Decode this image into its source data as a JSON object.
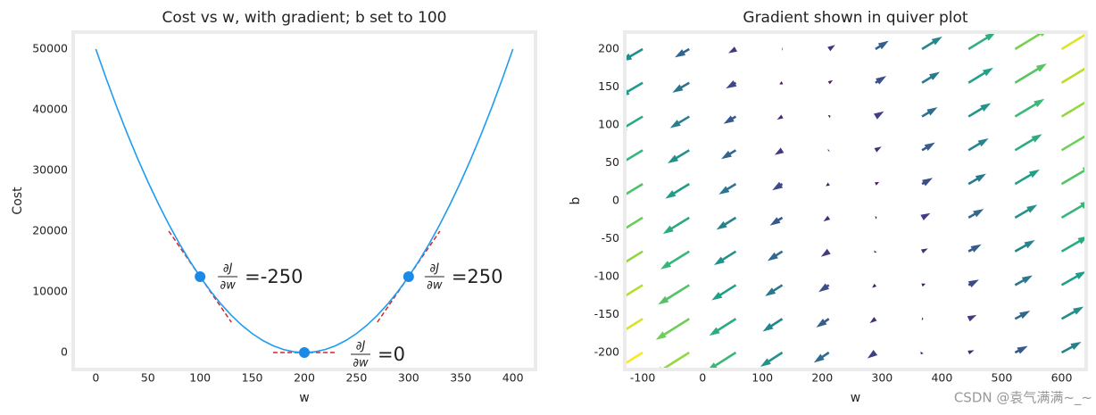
{
  "chart_data": [
    {
      "type": "line",
      "title": "Cost vs w, with gradient; b set to 100",
      "xlabel": "w",
      "ylabel": "Cost",
      "x": [
        0,
        10,
        20,
        30,
        40,
        50,
        60,
        70,
        80,
        90,
        100,
        110,
        120,
        130,
        140,
        150,
        160,
        170,
        180,
        190,
        200,
        210,
        220,
        230,
        240,
        250,
        260,
        270,
        280,
        290,
        300,
        310,
        320,
        330,
        340,
        350,
        360,
        370,
        380,
        390,
        400
      ],
      "values": [
        50000,
        45125,
        40500,
        36125,
        32000,
        28125,
        24500,
        21125,
        18000,
        15125,
        12500,
        10125,
        8000,
        6125,
        4500,
        3125,
        2000,
        1125,
        500,
        125,
        0,
        125,
        500,
        1125,
        2000,
        3125,
        4500,
        6125,
        8000,
        10125,
        12500,
        15125,
        18000,
        21125,
        24500,
        28125,
        32000,
        36125,
        40500,
        45125,
        50000
      ],
      "color": "#1f9bf0",
      "points": {
        "x": [
          100,
          200,
          300
        ],
        "y": [
          12500,
          0,
          12500
        ],
        "color": "#1a8ae6"
      },
      "tangents": [
        {
          "x": [
            70,
            130
          ],
          "y": [
            20000,
            5000
          ]
        },
        {
          "x": [
            170,
            230
          ],
          "y": [
            0,
            0
          ]
        },
        {
          "x": [
            270,
            330
          ],
          "y": [
            5000,
            20000
          ]
        }
      ],
      "tangent_color": "#d62728",
      "annotations": [
        {
          "numerator": "∂J",
          "denominator": "∂w",
          "text": "=-250"
        },
        {
          "numerator": "∂J",
          "denominator": "∂w",
          "text": "=0"
        },
        {
          "numerator": "∂J",
          "denominator": "∂w",
          "text": "=250"
        }
      ],
      "xlim": [
        -20,
        420
      ],
      "ylim": [
        -2500,
        52500
      ],
      "xticks": [
        0,
        50,
        100,
        150,
        200,
        250,
        300,
        350,
        400
      ],
      "yticks": [
        0,
        10000,
        20000,
        30000,
        40000,
        50000
      ]
    },
    {
      "type": "quiver",
      "title": "Gradient shown in quiver plot",
      "xlabel": "w",
      "ylabel": "b",
      "x": [
        -100,
        -22.2,
        55.6,
        133.3,
        211.1,
        288.9,
        366.7,
        444.4,
        522.2,
        600
      ],
      "y": [
        -200,
        -155.6,
        -111.1,
        -66.7,
        -22.2,
        22.2,
        66.7,
        111.1,
        155.6,
        200
      ],
      "u": [
        [
          -1200,
          -1006,
          -811,
          -617,
          -422,
          -228,
          -33,
          161,
          356,
          550
        ],
        [
          -1133,
          -939,
          -744,
          -550,
          -355,
          -161,
          34,
          228,
          423,
          617
        ],
        [
          -1067,
          -873,
          -678,
          -484,
          -289,
          -95,
          100,
          294,
          489,
          683
        ],
        [
          -1000,
          -806,
          -611,
          -417,
          -222,
          -28,
          167,
          361,
          556,
          750
        ],
        [
          -933,
          -739,
          -544,
          -350,
          -155,
          39,
          234,
          428,
          623,
          817
        ],
        [
          -867,
          -673,
          -478,
          -284,
          -89,
          105,
          300,
          494,
          689,
          883
        ],
        [
          -800,
          -606,
          -411,
          -217,
          -22,
          172,
          367,
          561,
          756,
          950
        ],
        [
          -733,
          -539,
          -344,
          -150,
          45,
          239,
          434,
          628,
          823,
          1017
        ],
        [
          -667,
          -473,
          -278,
          -84,
          111,
          305,
          500,
          694,
          889,
          1083
        ],
        [
          -600,
          -406,
          -211,
          -17,
          178,
          372,
          567,
          761,
          956,
          1150
        ]
      ],
      "v": [
        [
          -750,
          -633,
          -517,
          -400,
          -283,
          -167,
          -50,
          67,
          183,
          300
        ],
        [
          -706,
          -589,
          -473,
          -356,
          -239,
          -123,
          -6,
          111,
          227,
          344
        ],
        [
          -661,
          -544,
          -428,
          -311,
          -194,
          -78,
          39,
          156,
          272,
          389
        ],
        [
          -617,
          -500,
          -384,
          -267,
          -150,
          -34,
          83,
          200,
          316,
          433
        ],
        [
          -572,
          -455,
          -339,
          -222,
          -105,
          11,
          128,
          245,
          361,
          478
        ],
        [
          -528,
          -411,
          -295,
          -178,
          -61,
          55,
          172,
          289,
          405,
          522
        ],
        [
          -483,
          -366,
          -250,
          -133,
          -16,
          100,
          217,
          334,
          450,
          567
        ],
        [
          -439,
          -322,
          -206,
          -89,
          28,
          144,
          261,
          378,
          494,
          611
        ],
        [
          -394,
          -277,
          -161,
          -44,
          73,
          189,
          306,
          423,
          539,
          656
        ],
        [
          -350,
          -233,
          -117,
          0,
          117,
          233,
          350,
          467,
          583,
          700
        ]
      ],
      "colormap": "viridis",
      "xlim": [
        -127,
        638
      ],
      "ylim": [
        -220,
        220
      ],
      "xticks": [
        -100,
        0,
        100,
        200,
        300,
        400,
        500,
        600
      ],
      "yticks": [
        -200,
        -150,
        -100,
        -50,
        0,
        50,
        100,
        150,
        200
      ]
    }
  ],
  "watermark": "CSDN @袁气满满~_~"
}
